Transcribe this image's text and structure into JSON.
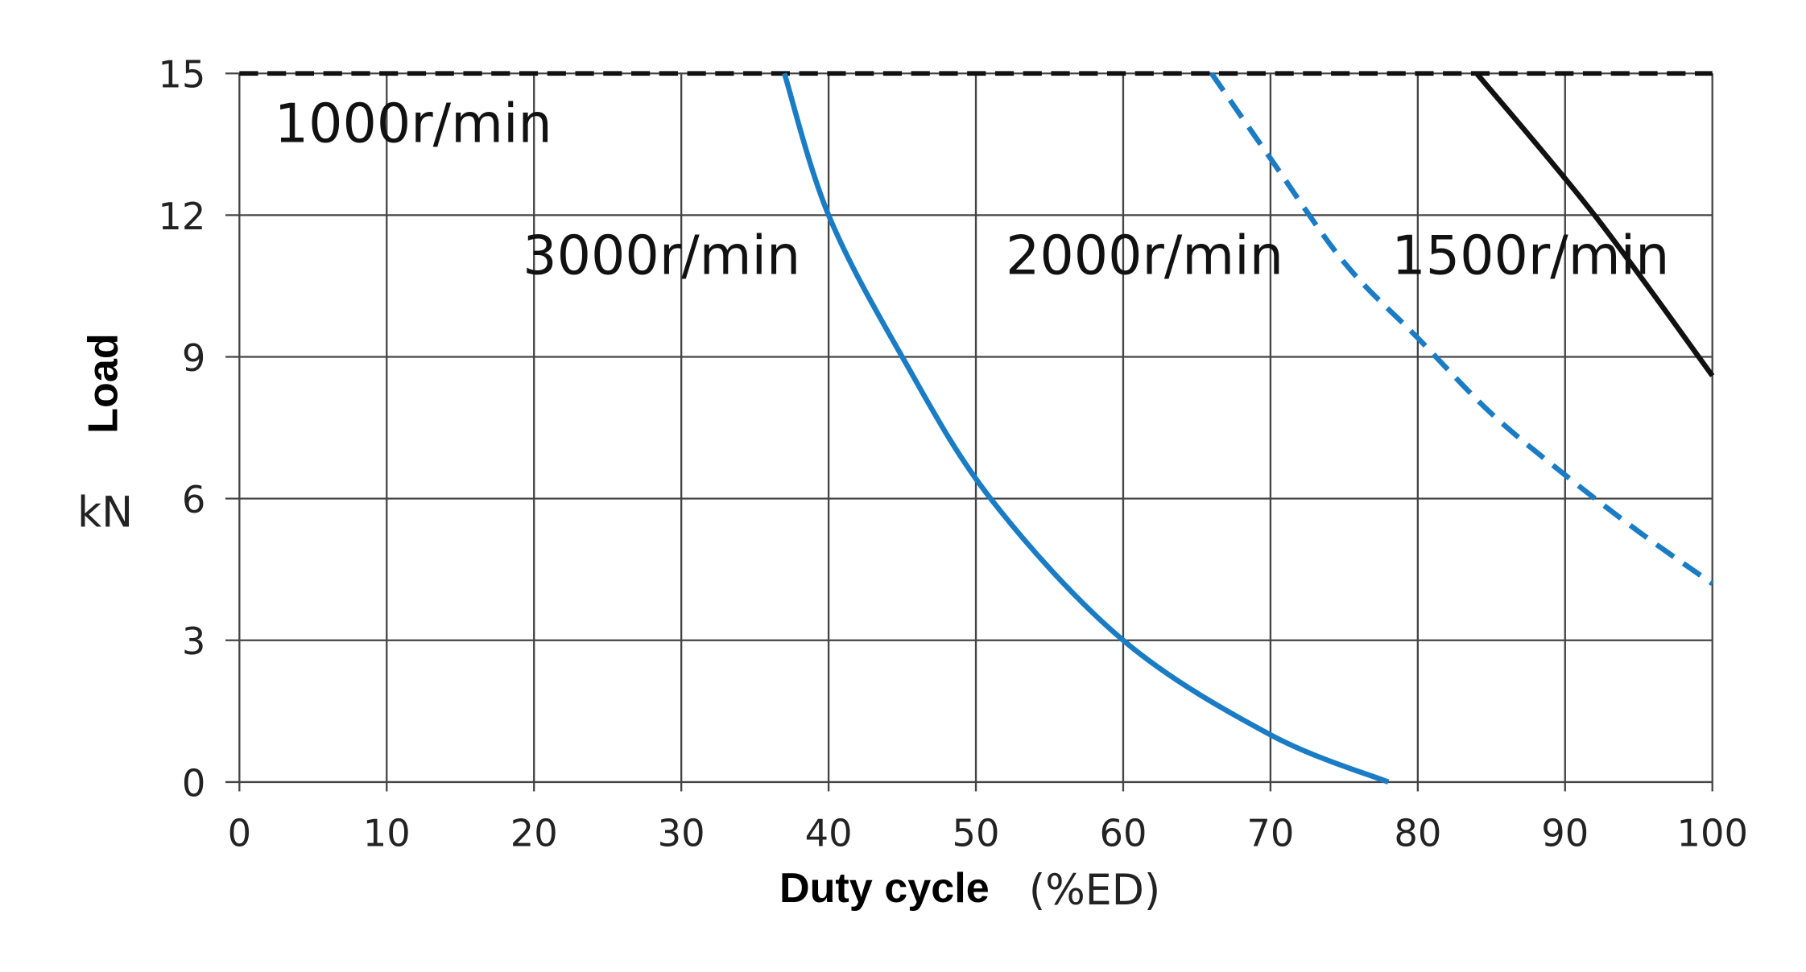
{
  "chart_data": {
    "type": "line",
    "title": "",
    "xlabel": "Duty cycle",
    "xlabel_unit": "(%ED)",
    "ylabel": "Load",
    "ylabel_unit": "kN",
    "xlim": [
      0,
      100
    ],
    "ylim": [
      0,
      15
    ],
    "xticks": [
      0,
      10,
      20,
      30,
      40,
      50,
      60,
      70,
      80,
      90,
      100
    ],
    "yticks": [
      0,
      3,
      6,
      9,
      12,
      15
    ],
    "grid": true,
    "series": [
      {
        "name": "1000r/min",
        "color": "#111111",
        "style": "dashed",
        "x": [
          0,
          100
        ],
        "y": [
          15,
          15
        ]
      },
      {
        "name": "3000r/min",
        "color": "#1a7cc4",
        "style": "solid",
        "x": [
          37,
          40,
          45,
          51,
          60,
          70,
          78
        ],
        "y": [
          15,
          12,
          9,
          6,
          3,
          1,
          0
        ]
      },
      {
        "name": "2000r/min",
        "color": "#1a7cc4",
        "style": "dashed",
        "x": [
          66,
          70,
          75,
          80,
          85,
          90,
          95,
          100
        ],
        "y": [
          15,
          13.2,
          11,
          9.4,
          7.8,
          6.5,
          5.3,
          4.2
        ]
      },
      {
        "name": "1500r/min",
        "color": "#111111",
        "style": "solid",
        "x": [
          84,
          92,
          100
        ],
        "y": [
          15,
          12,
          8.6
        ]
      }
    ]
  }
}
